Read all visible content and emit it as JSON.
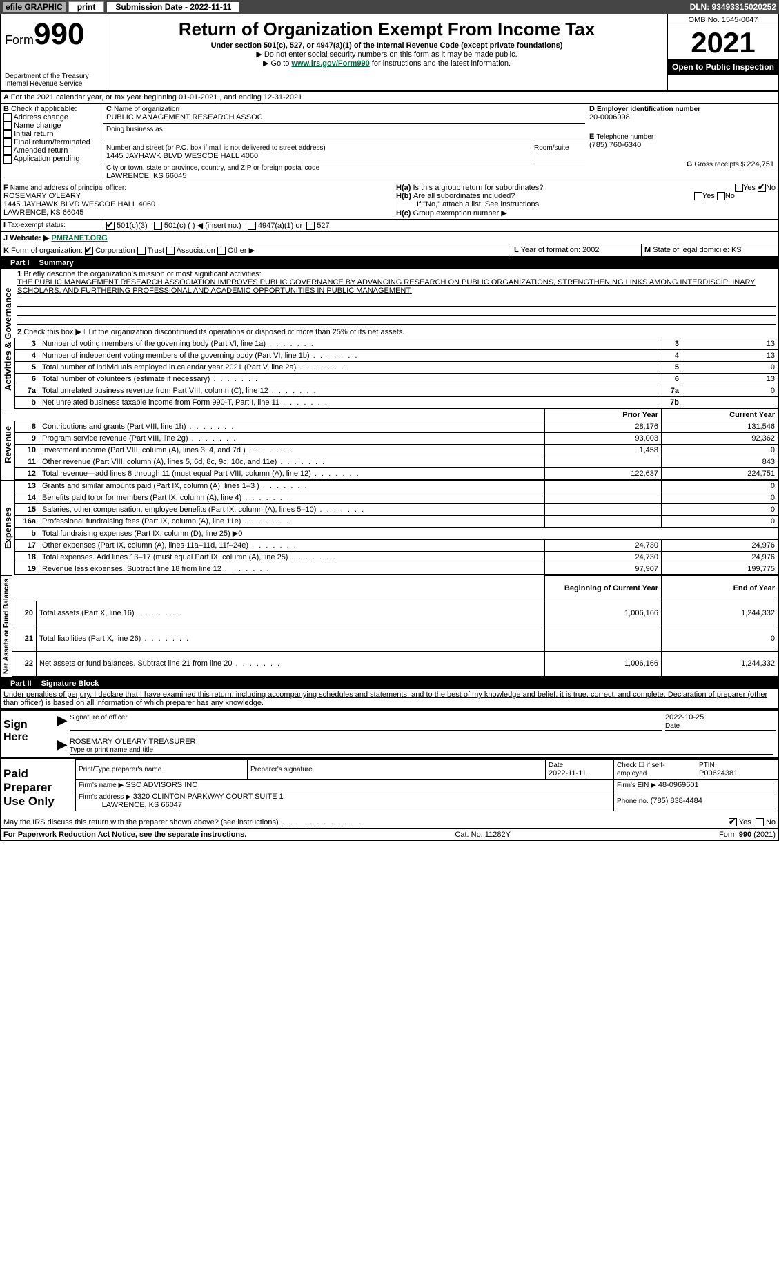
{
  "topbar": {
    "efile": "efile GRAPHIC",
    "print": "print",
    "sub_date_label": "Submission Date - 2022-11-11",
    "dln": "DLN: 93493315020252"
  },
  "header": {
    "form": "Form",
    "form_no": "990",
    "dept": "Department of the Treasury",
    "irs": "Internal Revenue Service",
    "title": "Return of Organization Exempt From Income Tax",
    "sub1": "Under section 501(c), 527, or 4947(a)(1) of the Internal Revenue Code (except private foundations)",
    "sub2": "▶ Do not enter social security numbers on this form as it may be made public.",
    "sub3_pre": "▶ Go to ",
    "sub3_link": "www.irs.gov/Form990",
    "sub3_post": " for instructions and the latest information.",
    "omb": "OMB No. 1545-0047",
    "year": "2021",
    "open": "Open to Public Inspection"
  },
  "periodA": "For the 2021 calendar year, or tax year beginning 01-01-2021    , and ending 12-31-2021",
  "boxB": {
    "label": "Check if applicable:",
    "opts": [
      "Address change",
      "Name change",
      "Initial return",
      "Final return/terminated",
      "Amended return",
      "Application pending"
    ]
  },
  "boxC": {
    "name_lbl": "Name of organization",
    "name": "PUBLIC MANAGEMENT RESEARCH ASSOC",
    "dba_lbl": "Doing business as",
    "addr_lbl": "Number and street (or P.O. box if mail is not delivered to street address)",
    "room_lbl": "Room/suite",
    "addr": "1445 JAYHAWK BLVD WESCOE HALL 4060",
    "city_lbl": "City or town, state or province, country, and ZIP or foreign postal code",
    "city": "LAWRENCE, KS  66045"
  },
  "boxD": {
    "lbl": "Employer identification number",
    "val": "20-0006098"
  },
  "boxE": {
    "lbl": "Telephone number",
    "val": "(785) 760-6340"
  },
  "boxG": {
    "lbl": "Gross receipts $",
    "val": "224,751"
  },
  "boxF": {
    "lbl": "Name and address of principal officer:",
    "name": "ROSEMARY O'LEARY",
    "addr1": "1445 JAYHAWK BLVD WESCOE HALL 4060",
    "addr2": "LAWRENCE, KS  66045"
  },
  "boxH": {
    "a": "Is this a group return for subordinates?",
    "b": "Are all subordinates included?",
    "no_note": "If \"No,\" attach a list. See instructions.",
    "c": "Group exemption number ▶",
    "yes": "Yes",
    "no": "No"
  },
  "boxI": {
    "lbl": "Tax-exempt status:",
    "o1": "501(c)(3)",
    "o2": "501(c) (    ) ◀ (insert no.)",
    "o3": "4947(a)(1) or",
    "o4": "527"
  },
  "boxJ": {
    "lbl": "Website: ▶",
    "val": "PMRANET.ORG"
  },
  "boxK": {
    "lbl": "Form of organization:",
    "o1": "Corporation",
    "o2": "Trust",
    "o3": "Association",
    "o4": "Other ▶"
  },
  "boxL": {
    "lbl": "Year of formation:",
    "val": "2002"
  },
  "boxM": {
    "lbl": "State of legal domicile:",
    "val": "KS"
  },
  "part1": {
    "title": "Part I",
    "name": "Summary",
    "mission_lbl": "Briefly describe the organization's mission or most significant activities:",
    "mission": "THE PUBLIC MANAGEMENT RESEARCH ASSOCIATION IMPROVES PUBLIC GOVERNANCE BY ADVANCING RESEARCH ON PUBLIC ORGANIZATIONS, STRENGTHENING LINKS AMONG INTERDISCIPLINARY SCHOLARS, AND FURTHERING PROFESSIONAL AND ACADEMIC OPPORTUNITIES IN PUBLIC MANAGEMENT.",
    "line2": "Check this box ▶ ☐ if the organization discontinued its operations or disposed of more than 25% of its net assets.",
    "gov_label": "Activities & Governance",
    "rev_label": "Revenue",
    "exp_label": "Expenses",
    "net_label": "Net Assets or Fund Balances",
    "rows_gov": [
      {
        "n": "3",
        "t": "Number of voting members of the governing body (Part VI, line 1a)",
        "box": "3",
        "v": "13"
      },
      {
        "n": "4",
        "t": "Number of independent voting members of the governing body (Part VI, line 1b)",
        "box": "4",
        "v": "13"
      },
      {
        "n": "5",
        "t": "Total number of individuals employed in calendar year 2021 (Part V, line 2a)",
        "box": "5",
        "v": "0"
      },
      {
        "n": "6",
        "t": "Total number of volunteers (estimate if necessary)",
        "box": "6",
        "v": "13"
      },
      {
        "n": "7a",
        "t": "Total unrelated business revenue from Part VIII, column (C), line 12",
        "box": "7a",
        "v": "0"
      },
      {
        "n": "b",
        "t": "Net unrelated business taxable income from Form 990-T, Part I, line 11",
        "box": "7b",
        "v": ""
      }
    ],
    "col_prior": "Prior Year",
    "col_curr": "Current Year",
    "rows_rev": [
      {
        "n": "8",
        "t": "Contributions and grants (Part VIII, line 1h)",
        "p": "28,176",
        "c": "131,546"
      },
      {
        "n": "9",
        "t": "Program service revenue (Part VIII, line 2g)",
        "p": "93,003",
        "c": "92,362"
      },
      {
        "n": "10",
        "t": "Investment income (Part VIII, column (A), lines 3, 4, and 7d )",
        "p": "1,458",
        "c": "0"
      },
      {
        "n": "11",
        "t": "Other revenue (Part VIII, column (A), lines 5, 6d, 8c, 9c, 10c, and 11e)",
        "p": "",
        "c": "843"
      },
      {
        "n": "12",
        "t": "Total revenue—add lines 8 through 11 (must equal Part VIII, column (A), line 12)",
        "p": "122,637",
        "c": "224,751"
      }
    ],
    "rows_exp": [
      {
        "n": "13",
        "t": "Grants and similar amounts paid (Part IX, column (A), lines 1–3 )",
        "p": "",
        "c": "0"
      },
      {
        "n": "14",
        "t": "Benefits paid to or for members (Part IX, column (A), line 4)",
        "p": "",
        "c": "0"
      },
      {
        "n": "15",
        "t": "Salaries, other compensation, employee benefits (Part IX, column (A), lines 5–10)",
        "p": "",
        "c": "0"
      },
      {
        "n": "16a",
        "t": "Professional fundraising fees (Part IX, column (A), line 11e)",
        "p": "",
        "c": "0"
      },
      {
        "n": "b",
        "t": "Total fundraising expenses (Part IX, column (D), line 25) ▶0",
        "p": "-",
        "c": "-"
      },
      {
        "n": "17",
        "t": "Other expenses (Part IX, column (A), lines 11a–11d, 11f–24e)",
        "p": "24,730",
        "c": "24,976"
      },
      {
        "n": "18",
        "t": "Total expenses. Add lines 13–17 (must equal Part IX, column (A), line 25)",
        "p": "24,730",
        "c": "24,976"
      },
      {
        "n": "19",
        "t": "Revenue less expenses. Subtract line 18 from line 12",
        "p": "97,907",
        "c": "199,775"
      }
    ],
    "col_beg": "Beginning of Current Year",
    "col_end": "End of Year",
    "rows_net": [
      {
        "n": "20",
        "t": "Total assets (Part X, line 16)",
        "p": "1,006,166",
        "c": "1,244,332"
      },
      {
        "n": "21",
        "t": "Total liabilities (Part X, line 26)",
        "p": "",
        "c": "0"
      },
      {
        "n": "22",
        "t": "Net assets or fund balances. Subtract line 21 from line 20",
        "p": "1,006,166",
        "c": "1,244,332"
      }
    ]
  },
  "part2": {
    "title": "Part II",
    "name": "Signature Block",
    "decl": "Under penalties of perjury, I declare that I have examined this return, including accompanying schedules and statements, and to the best of my knowledge and belief, it is true, correct, and complete. Declaration of preparer (other than officer) is based on all information of which preparer has any knowledge.",
    "sign_here": "Sign Here",
    "sig_officer": "Signature of officer",
    "sig_date": "2022-10-25",
    "date_lbl": "Date",
    "officer_name": "ROSEMARY O'LEARY TREASURER",
    "type_lbl": "Type or print name and title",
    "paid": "Paid Preparer Use Only",
    "prep_name_lbl": "Print/Type preparer's name",
    "prep_sig_lbl": "Preparer's signature",
    "prep_date": "2022-11-11",
    "check_self": "Check ☐ if self-employed",
    "ptin_lbl": "PTIN",
    "ptin": "P00624381",
    "firm_name_lbl": "Firm's name ▶",
    "firm_name": "SSC ADVISORS INC",
    "firm_ein_lbl": "Firm's EIN ▶",
    "firm_ein": "48-0969601",
    "firm_addr_lbl": "Firm's address ▶",
    "firm_addr1": "3320 CLINTON PARKWAY COURT SUITE 1",
    "firm_addr2": "LAWRENCE, KS  66047",
    "phone_lbl": "Phone no.",
    "phone": "(785) 838-4484",
    "discuss": "May the IRS discuss this return with the preparer shown above? (see instructions)",
    "yes": "Yes",
    "no": "No"
  },
  "footer": {
    "pra": "For Paperwork Reduction Act Notice, see the separate instructions.",
    "cat": "Cat. No. 11282Y",
    "form": "Form 990 (2021)"
  }
}
